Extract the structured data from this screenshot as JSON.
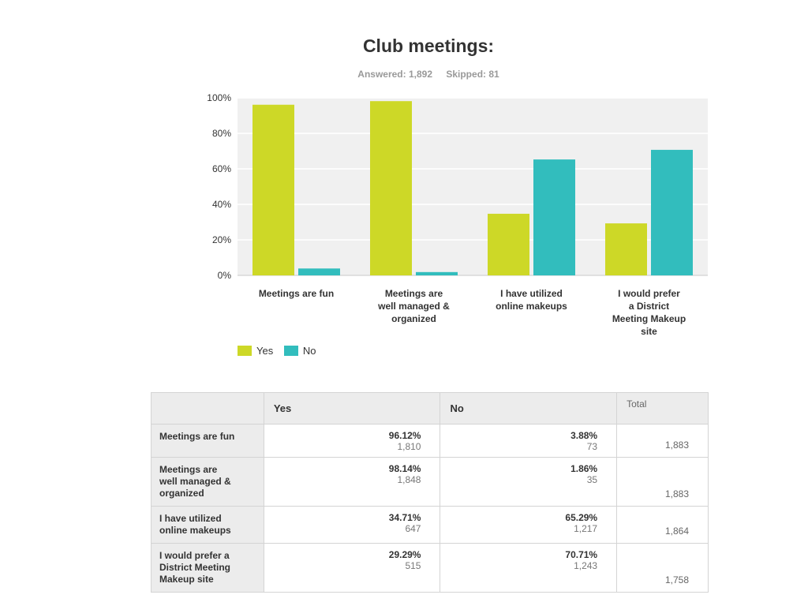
{
  "chart_data": {
    "type": "bar",
    "title": "Club meetings:",
    "answered": "Answered: 1,892",
    "skipped": "Skipped: 81",
    "categories": [
      [
        "Meetings are fun"
      ],
      [
        "Meetings are",
        "well managed &",
        "organized"
      ],
      [
        "I have utilized",
        "online makeups"
      ],
      [
        "I would prefer",
        "a District",
        "Meeting Makeup",
        "site"
      ]
    ],
    "series": [
      {
        "name": "Yes",
        "color": "#cdd827",
        "values": [
          96.12,
          98.14,
          34.71,
          29.29
        ]
      },
      {
        "name": "No",
        "color": "#32bdbd",
        "values": [
          3.88,
          1.86,
          65.29,
          70.71
        ]
      }
    ],
    "ylim": [
      0,
      100
    ],
    "yticks": [
      "0%",
      "20%",
      "40%",
      "60%",
      "80%",
      "100%"
    ],
    "legend_position": "bottom-left"
  },
  "table": {
    "headers": [
      "",
      "Yes",
      "No",
      "Total"
    ],
    "rows": [
      {
        "label": [
          "Meetings are fun"
        ],
        "yes_pct": "96.12%",
        "yes_count": "1,810",
        "no_pct": "3.88%",
        "no_count": "73",
        "total": "1,883"
      },
      {
        "label": [
          "Meetings are",
          "well managed &",
          "organized"
        ],
        "yes_pct": "98.14%",
        "yes_count": "1,848",
        "no_pct": "1.86%",
        "no_count": "35",
        "total": "1,883"
      },
      {
        "label": [
          "I have utilized",
          "online makeups"
        ],
        "yes_pct": "34.71%",
        "yes_count": "647",
        "no_pct": "65.29%",
        "no_count": "1,217",
        "total": "1,864"
      },
      {
        "label": [
          "I would prefer a",
          "District Meeting",
          "Makeup site"
        ],
        "yes_pct": "29.29%",
        "yes_count": "515",
        "no_pct": "70.71%",
        "no_count": "1,243",
        "total": "1,758"
      }
    ]
  }
}
